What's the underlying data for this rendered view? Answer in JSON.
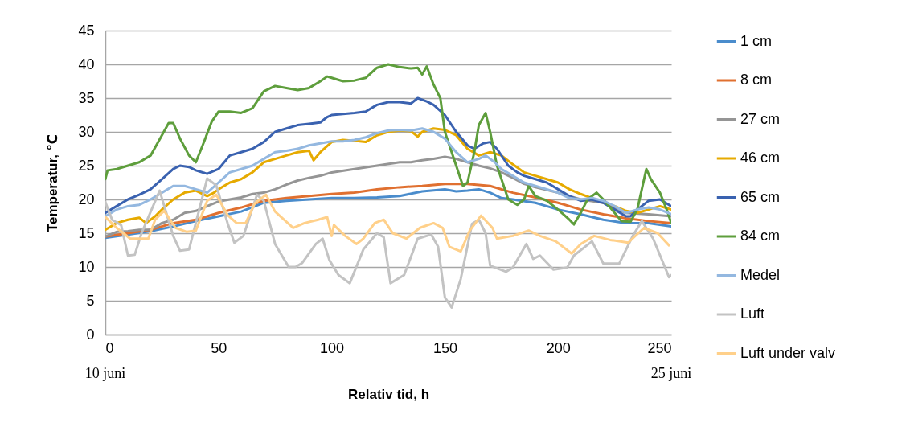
{
  "chart_data": {
    "type": "line",
    "xlabel": "Relativ tid, h",
    "ylabel": "Temperatur, ℃",
    "annotations": [
      "10 juni",
      "25 juni"
    ],
    "xlim": [
      0,
      250
    ],
    "xticks": [
      0,
      50,
      100,
      150,
      200,
      250
    ],
    "ylim": [
      0,
      45
    ],
    "yticks": [
      0,
      5,
      10,
      15,
      20,
      25,
      30,
      35,
      40,
      45
    ],
    "grid": "y",
    "legend": "right",
    "series": [
      {
        "name": "1 cm",
        "color": "#4a8ccc",
        "x": [
          0,
          10,
          20,
          30,
          40,
          50,
          60,
          70,
          80,
          90,
          100,
          110,
          120,
          130,
          140,
          150,
          155,
          160,
          165,
          170,
          175,
          180,
          190,
          200,
          210,
          220,
          230,
          240,
          250
        ],
        "values": [
          14.3,
          14.8,
          15.3,
          16,
          16.8,
          17.5,
          18.2,
          19.5,
          19.8,
          20,
          20.2,
          20.2,
          20.3,
          20.5,
          21.2,
          21.5,
          21.2,
          21.3,
          21.5,
          21,
          20.2,
          20,
          19.5,
          18.5,
          17.8,
          17,
          16.5,
          16.5,
          16
        ]
      },
      {
        "name": "8 cm",
        "color": "#e07030",
        "x": [
          0,
          10,
          20,
          30,
          40,
          50,
          60,
          70,
          80,
          90,
          100,
          110,
          120,
          130,
          140,
          150,
          160,
          170,
          180,
          190,
          200,
          210,
          220,
          230,
          240,
          250
        ],
        "values": [
          14.5,
          15,
          15.5,
          16.5,
          17,
          18,
          18.8,
          19.8,
          20.2,
          20.5,
          20.8,
          21,
          21.5,
          21.8,
          22,
          22.3,
          22.3,
          22,
          21,
          20.3,
          19.5,
          18.5,
          17.8,
          17.2,
          16.8,
          16.5
        ]
      },
      {
        "name": "27 cm",
        "color": "#959595",
        "x": [
          0,
          5,
          10,
          15,
          20,
          25,
          30,
          35,
          40,
          45,
          50,
          55,
          60,
          65,
          70,
          75,
          80,
          85,
          90,
          95,
          100,
          110,
          120,
          130,
          135,
          140,
          145,
          150,
          155,
          160,
          165,
          170,
          175,
          180,
          185,
          190,
          200,
          210,
          220,
          230,
          240,
          250
        ],
        "values": [
          14.5,
          15.2,
          15.3,
          15.5,
          15.5,
          16.5,
          17,
          18,
          18.3,
          19,
          19.7,
          20,
          20.3,
          20.8,
          21,
          21.5,
          22.2,
          22.8,
          23.2,
          23.5,
          24,
          24.5,
          25,
          25.5,
          25.5,
          25.8,
          26,
          26.3,
          26,
          25.5,
          25,
          24.6,
          24,
          23.2,
          22.3,
          21.8,
          21,
          20,
          19.5,
          18,
          17.8,
          17.5
        ]
      },
      {
        "name": "46 cm",
        "color": "#e6aa00",
        "x": [
          0,
          5,
          10,
          15,
          18,
          22,
          25,
          30,
          35,
          40,
          45,
          48,
          50,
          55,
          60,
          65,
          70,
          75,
          80,
          85,
          90,
          92,
          95,
          100,
          105,
          110,
          115,
          120,
          125,
          130,
          135,
          138,
          140,
          145,
          150,
          155,
          160,
          165,
          170,
          175,
          180,
          185,
          190,
          195,
          200,
          205,
          210,
          215,
          220,
          225,
          230,
          235,
          240,
          245,
          250
        ],
        "values": [
          15.5,
          16.5,
          17,
          17.3,
          16.5,
          17.5,
          18.5,
          20,
          21,
          21.3,
          20.5,
          21,
          21.5,
          22.5,
          23,
          24,
          25.5,
          26,
          26.5,
          27,
          27.2,
          25.8,
          27,
          28.5,
          28.8,
          28.7,
          28.5,
          29.5,
          30,
          30.2,
          30.1,
          29.3,
          30,
          30.5,
          30.3,
          29.5,
          27.5,
          26.5,
          27,
          26.5,
          25.2,
          24,
          23.5,
          23,
          22.5,
          21.5,
          20.8,
          20.2,
          19.5,
          19,
          18.3,
          18,
          18.5,
          19,
          18.5
        ]
      },
      {
        "name": "65 cm",
        "color": "#3a62b0",
        "x": [
          0,
          5,
          10,
          15,
          20,
          25,
          30,
          33,
          37,
          40,
          45,
          50,
          55,
          60,
          65,
          70,
          75,
          80,
          85,
          90,
          95,
          98,
          100,
          110,
          115,
          120,
          125,
          130,
          135,
          138,
          142,
          145,
          150,
          155,
          160,
          163,
          167,
          170,
          173,
          178,
          182,
          185,
          190,
          195,
          200,
          205,
          210,
          215,
          220,
          225,
          230,
          232,
          235,
          240,
          245,
          250
        ],
        "values": [
          18,
          19,
          20,
          20.7,
          21.5,
          23,
          24.5,
          25,
          24.8,
          24.3,
          23.8,
          24.5,
          26.5,
          27,
          27.5,
          28.5,
          30,
          30.5,
          31,
          31.2,
          31.4,
          32.2,
          32.5,
          32.8,
          33,
          34,
          34.4,
          34.4,
          34.2,
          35,
          34.5,
          34,
          32.5,
          30,
          28,
          27.5,
          28.3,
          28.5,
          27.5,
          25,
          24,
          23.5,
          23,
          22.5,
          21.5,
          20.5,
          19.8,
          20,
          19.5,
          18.5,
          17.5,
          17.5,
          18.5,
          19.8,
          20,
          19
        ]
      },
      {
        "name": "84 cm",
        "color": "#5e9e3c",
        "x": [
          0,
          1,
          5,
          10,
          15,
          20,
          25,
          28,
          30,
          33,
          37,
          40,
          43,
          47,
          50,
          55,
          60,
          65,
          70,
          75,
          80,
          85,
          90,
          95,
          98,
          100,
          105,
          110,
          115,
          120,
          125,
          130,
          135,
          138,
          140,
          142,
          145,
          148,
          150,
          155,
          158,
          160,
          163,
          165,
          168,
          170,
          173,
          178,
          182,
          185,
          187,
          190,
          195,
          200,
          205,
          207,
          210,
          213,
          217,
          220,
          225,
          228,
          232,
          235,
          237,
          239,
          241,
          245,
          248,
          250
        ],
        "values": [
          23,
          24.3,
          24.5,
          25,
          25.5,
          26.5,
          29.5,
          31.3,
          31.3,
          29,
          26.5,
          25.5,
          28,
          31.5,
          33,
          33,
          32.8,
          33.5,
          36,
          36.8,
          36.5,
          36.2,
          36.5,
          37.5,
          38.2,
          38,
          37.5,
          37.6,
          38,
          39.5,
          40,
          39.6,
          39.4,
          39.5,
          38.5,
          39.7,
          37,
          35,
          30,
          25,
          22,
          22.5,
          27,
          31,
          32.8,
          30,
          25,
          20,
          19.2,
          20,
          22,
          20.5,
          19.8,
          18.5,
          17,
          16.3,
          18,
          20,
          21,
          20,
          18,
          16.8,
          16.7,
          18.5,
          21.5,
          24.5,
          23,
          21,
          18.5,
          16.5
        ]
      },
      {
        "name": "Medel",
        "color": "#94b8e0",
        "x": [
          0,
          5,
          10,
          15,
          20,
          25,
          30,
          35,
          40,
          45,
          50,
          55,
          60,
          65,
          70,
          75,
          80,
          85,
          90,
          95,
          100,
          105,
          110,
          115,
          120,
          125,
          130,
          135,
          140,
          145,
          150,
          155,
          160,
          165,
          168,
          172,
          175,
          180,
          185,
          190,
          195,
          200,
          205,
          210,
          215,
          220,
          225,
          230,
          235,
          240,
          245,
          250
        ],
        "values": [
          17.5,
          18.5,
          19,
          19.2,
          20,
          21,
          22,
          22,
          21.5,
          21,
          22.5,
          24,
          24.5,
          25,
          26,
          27,
          27.2,
          27.5,
          28,
          28.3,
          28.6,
          28.6,
          28.8,
          29.2,
          29.8,
          30.2,
          30.3,
          30.2,
          30.5,
          30,
          29,
          27,
          25.5,
          26,
          26.5,
          25.5,
          24.5,
          23.5,
          22.5,
          22,
          21.5,
          21,
          20.2,
          20,
          20.2,
          19.8,
          19,
          18,
          18.5,
          18.8,
          18.5,
          17.8
        ]
      },
      {
        "name": "Luft",
        "color": "#c3c3c3",
        "x": [
          0,
          3,
          7,
          10,
          13,
          16,
          24,
          30,
          33,
          37,
          45,
          49,
          54,
          57,
          61,
          67,
          70,
          75,
          81,
          84,
          87,
          93,
          96,
          99,
          103,
          108,
          114,
          120,
          123,
          126,
          132,
          138,
          144,
          147,
          150,
          153,
          157,
          162,
          165,
          168,
          170,
          177,
          180,
          186,
          189,
          192,
          198,
          204,
          207,
          215,
          220,
          227,
          233,
          237,
          242,
          249,
          250
        ],
        "values": [
          19.6,
          17,
          16.2,
          11.7,
          11.8,
          15,
          21.3,
          14.6,
          12.4,
          12.6,
          23.1,
          22.1,
          16.5,
          13.6,
          14.6,
          20.7,
          19.8,
          13.4,
          10,
          10,
          10.6,
          13.4,
          14.2,
          11,
          8.8,
          7.6,
          12.6,
          15,
          14.4,
          7.6,
          8.8,
          14.2,
          14.8,
          13,
          5.5,
          4,
          8.2,
          16.4,
          17,
          15,
          10.2,
          9.3,
          9.9,
          13.4,
          11.2,
          11.7,
          9.6,
          9.9,
          11.7,
          13.8,
          10.5,
          10.5,
          14.6,
          16.8,
          14.2,
          8.5,
          8.8
        ]
      },
      {
        "name": "Luft under valv",
        "color": "#ffd08a",
        "x": [
          0,
          5,
          11,
          19,
          22,
          26,
          31,
          36,
          40,
          45,
          49,
          54,
          58,
          62,
          66,
          71,
          75,
          83,
          88,
          94,
          98,
          100,
          101,
          106,
          111,
          114,
          119,
          123,
          127,
          133,
          139,
          145,
          149,
          152,
          157,
          161,
          166,
          171,
          173,
          180,
          187,
          192,
          199,
          206,
          210,
          216,
          223,
          231,
          238,
          244,
          249
        ],
        "values": [
          17.4,
          15.8,
          14.2,
          14.2,
          17,
          18.3,
          15.8,
          15.2,
          15.4,
          19.8,
          20.7,
          17.7,
          16.5,
          16.5,
          19.4,
          20.7,
          18.2,
          15.8,
          16.5,
          17,
          17.4,
          14.6,
          16.2,
          14.6,
          13.4,
          14.2,
          16.5,
          17,
          15,
          14.2,
          15.8,
          16.5,
          15.8,
          13,
          12.3,
          15.4,
          17.6,
          15.8,
          14.2,
          14.6,
          15.4,
          14.6,
          13.8,
          12,
          13.4,
          14.6,
          14,
          13.6,
          15.8,
          15,
          13.2
        ]
      }
    ]
  }
}
